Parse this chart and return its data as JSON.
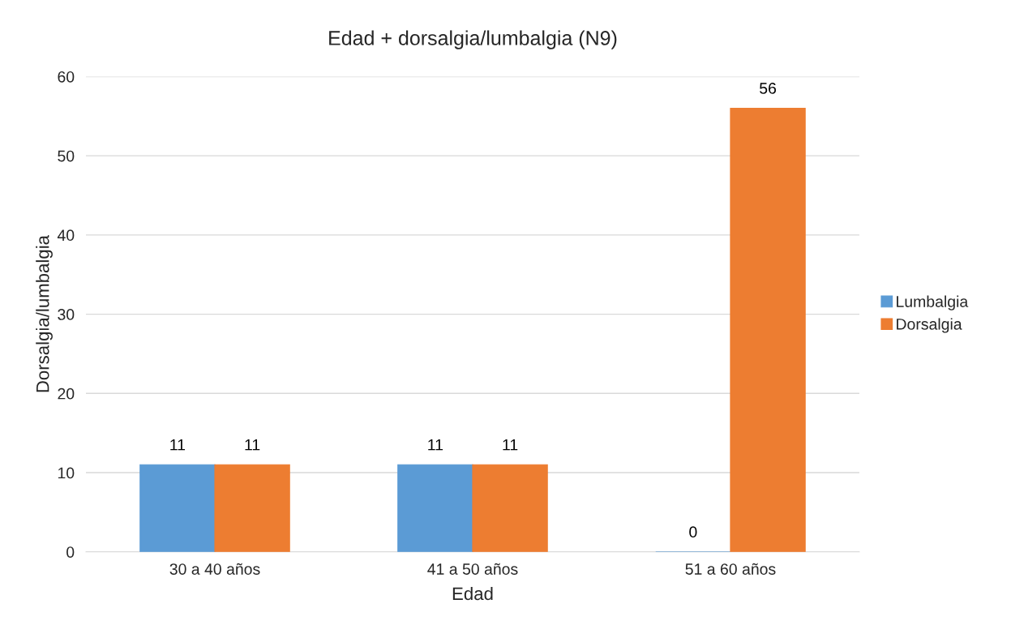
{
  "chart_data": {
    "type": "bar",
    "title": "Edad + dorsalgia/lumbalgia (N9)",
    "xlabel": "Edad",
    "ylabel": "Dorsalgia/lumbalgia",
    "categories": [
      "30 a 40 años",
      "41 a 50 años",
      "51 a 60 años"
    ],
    "series": [
      {
        "name": "Lumbalgia",
        "color": "#5b9bd5",
        "values": [
          11,
          11,
          0
        ]
      },
      {
        "name": "Dorsalgia",
        "color": "#ed7d31",
        "values": [
          11,
          11,
          56
        ]
      }
    ],
    "ylim": [
      0,
      60
    ],
    "yticks": [
      0,
      10,
      20,
      30,
      40,
      50,
      60
    ],
    "grid": "y",
    "legend": "right",
    "data_labels": true
  }
}
